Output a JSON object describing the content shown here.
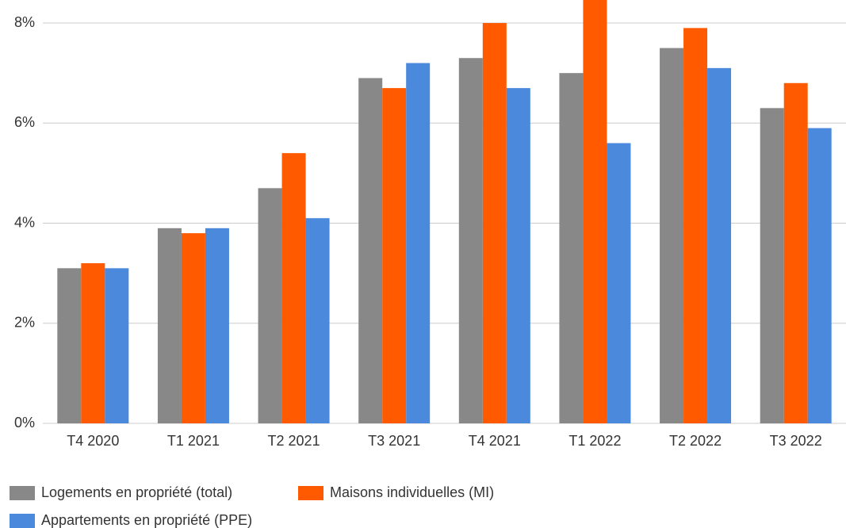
{
  "chart_data": {
    "type": "bar",
    "categories": [
      "T4 2020",
      "T1 2021",
      "T2 2021",
      "T3 2021",
      "T4 2021",
      "T1 2022",
      "T2 2022",
      "T3 2022"
    ],
    "series": [
      {
        "name": "Logements en propriété (total)",
        "color": "#888888",
        "values": [
          3.1,
          3.9,
          4.7,
          6.9,
          7.3,
          7.0,
          7.5,
          6.3
        ]
      },
      {
        "name": "Maisons individuelles (MI)",
        "color": "#ff5a00",
        "values": [
          3.2,
          3.8,
          5.4,
          6.7,
          8.0,
          8.6,
          7.9,
          6.8
        ]
      },
      {
        "name": "Appartements en propriété (PPE)",
        "color": "#4a89dc",
        "values": [
          3.1,
          3.9,
          4.1,
          7.2,
          6.7,
          5.6,
          7.1,
          5.9
        ]
      }
    ],
    "ylim": [
      0,
      8.46
    ],
    "yticks": [
      {
        "value": 0,
        "label": "0%"
      },
      {
        "value": 2,
        "label": "2%"
      },
      {
        "value": 4,
        "label": "4%"
      },
      {
        "value": 6,
        "label": "6%"
      },
      {
        "value": 8,
        "label": "8%"
      }
    ],
    "grid": true
  }
}
